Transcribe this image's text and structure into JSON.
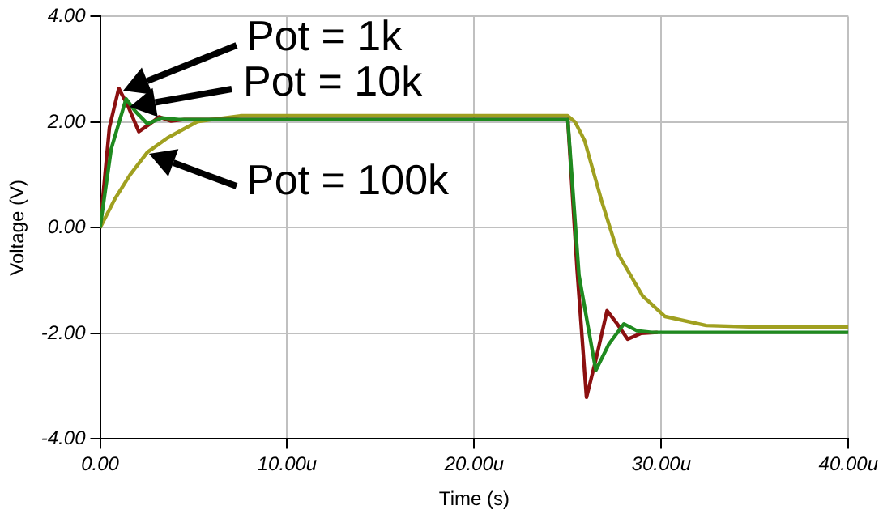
{
  "chart_data": {
    "type": "line",
    "xlabel": "Time (s)",
    "ylabel": "Voltage (V)",
    "xlim": [
      0,
      40
    ],
    "xticks": [
      {
        "value": 0,
        "label": "0.00"
      },
      {
        "value": 10,
        "label": "10.00u"
      },
      {
        "value": 20,
        "label": "20.00u"
      },
      {
        "value": 30,
        "label": "30.00u"
      },
      {
        "value": 40,
        "label": "40.00u"
      }
    ],
    "ylim": [
      -4,
      4
    ],
    "yticks": [
      {
        "value": -4,
        "label": "-4.00"
      },
      {
        "value": -2,
        "label": "-2.00"
      },
      {
        "value": 0,
        "label": "0.00"
      },
      {
        "value": 2,
        "label": "2.00"
      },
      {
        "value": 4,
        "label": "4.00"
      }
    ],
    "grid": true,
    "legend": false,
    "marker": "none",
    "line_style": "solid",
    "series": [
      {
        "color": "#8b1010",
        "x": [
          0,
          0.5,
          1.0,
          1.5,
          2.07,
          2.6,
          3.15,
          3.8,
          4.5,
          25,
          25.5,
          26.0,
          26.5,
          27.1,
          27.6,
          28.2,
          28.9,
          29.8
        ],
        "values": [
          0,
          1.9,
          2.64,
          2.3,
          1.82,
          1.95,
          2.1,
          2.02,
          2.05,
          2.05,
          -0.8,
          -3.21,
          -2.5,
          -1.57,
          -1.8,
          -2.11,
          -2.0,
          -1.98
        ]
      },
      {
        "color": "#1f8a1f",
        "x": [
          0,
          0.6,
          1.39,
          1.9,
          2.53,
          3.3,
          4.2,
          25,
          25.6,
          26.5,
          27.2,
          28.0,
          28.7,
          29.5,
          40
        ],
        "values": [
          0,
          1.5,
          2.44,
          2.2,
          1.97,
          2.08,
          2.05,
          2.05,
          -0.9,
          -2.7,
          -2.2,
          -1.82,
          -1.95,
          -1.98,
          -1.98
        ]
      },
      {
        "color": "#a0a020",
        "x": [
          0,
          0.8,
          1.6,
          2.53,
          3.6,
          5.2,
          7.5,
          25,
          25.4,
          25.9,
          26.8,
          27.7,
          29.0,
          30.2,
          32.4,
          35,
          40
        ],
        "values": [
          0,
          0.55,
          1.0,
          1.43,
          1.7,
          2.01,
          2.12,
          2.12,
          2.0,
          1.65,
          0.52,
          -0.5,
          -1.29,
          -1.68,
          -1.85,
          -1.88,
          -1.88
        ]
      }
    ],
    "annotations": [
      "Pot = 1k",
      "Pot = 10k",
      "Pot = 100k"
    ]
  }
}
